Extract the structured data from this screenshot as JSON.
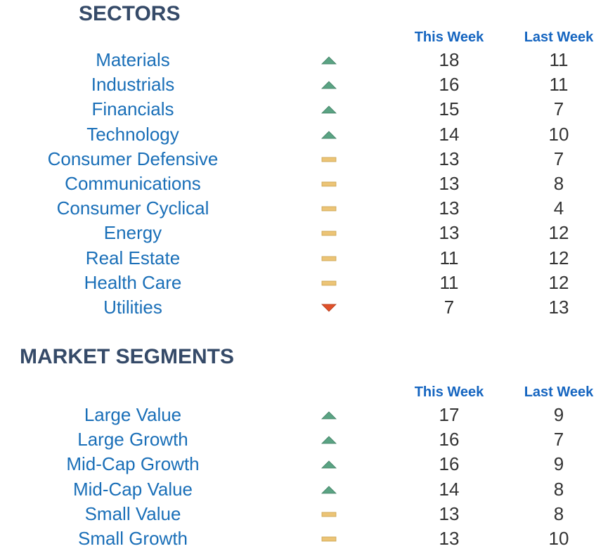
{
  "sectors": {
    "title": "SECTORS",
    "col_this": "This Week",
    "col_last": "Last Week",
    "rows": [
      {
        "name": "Materials",
        "trend": "up",
        "this_week": "18",
        "last_week": "11"
      },
      {
        "name": "Industrials",
        "trend": "up",
        "this_week": "16",
        "last_week": "11"
      },
      {
        "name": "Financials",
        "trend": "up",
        "this_week": "15",
        "last_week": "7"
      },
      {
        "name": "Technology",
        "trend": "up",
        "this_week": "14",
        "last_week": "10"
      },
      {
        "name": "Consumer Defensive",
        "trend": "flat",
        "this_week": "13",
        "last_week": "7"
      },
      {
        "name": "Communications",
        "trend": "flat",
        "this_week": "13",
        "last_week": "8"
      },
      {
        "name": "Consumer Cyclical",
        "trend": "flat",
        "this_week": "13",
        "last_week": "4"
      },
      {
        "name": "Energy",
        "trend": "flat",
        "this_week": "13",
        "last_week": "12"
      },
      {
        "name": "Real Estate",
        "trend": "flat",
        "this_week": "11",
        "last_week": "12"
      },
      {
        "name": "Health Care",
        "trend": "flat",
        "this_week": "11",
        "last_week": "12"
      },
      {
        "name": "Utilities",
        "trend": "down",
        "this_week": "7",
        "last_week": "13"
      }
    ]
  },
  "segments": {
    "title": "MARKET SEGMENTS",
    "col_this": "This Week",
    "col_last": "Last Week",
    "rows": [
      {
        "name": "Large Value",
        "trend": "up",
        "this_week": "17",
        "last_week": "9"
      },
      {
        "name": "Large Growth",
        "trend": "up",
        "this_week": "16",
        "last_week": "7"
      },
      {
        "name": "Mid-Cap Growth",
        "trend": "up",
        "this_week": "16",
        "last_week": "9"
      },
      {
        "name": "Mid-Cap Value",
        "trend": "up",
        "this_week": "14",
        "last_week": "8"
      },
      {
        "name": "Small Value",
        "trend": "flat",
        "this_week": "13",
        "last_week": "8"
      },
      {
        "name": "Small Growth",
        "trend": "flat",
        "this_week": "13",
        "last_week": "10"
      }
    ]
  },
  "colors": {
    "up": "#5aa383",
    "flat": "#ecc476",
    "down": "#e0512a"
  },
  "icons": {
    "up": "triangle-up-icon",
    "flat": "dash-icon",
    "down": "triangle-down-icon"
  }
}
